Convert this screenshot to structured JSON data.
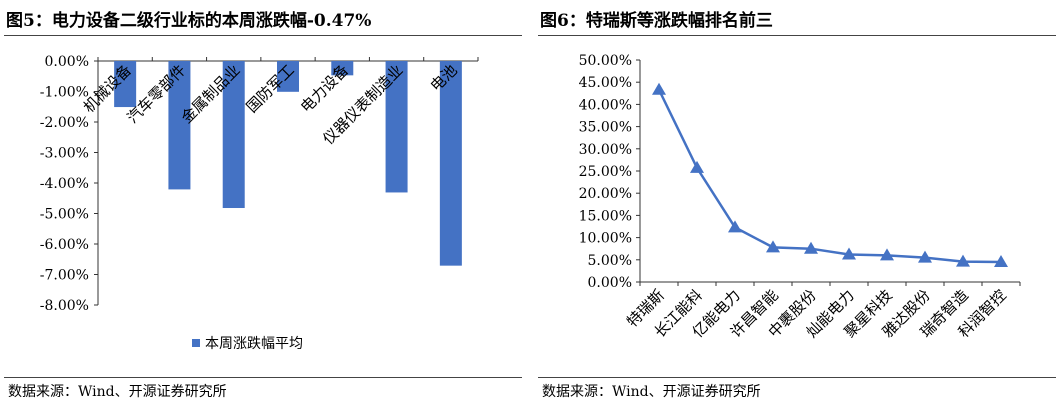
{
  "left": {
    "title": "图5：电力设备二级行业标的本周涨跌幅-0.47%",
    "source": "数据来源：Wind、开源证券研究所"
  },
  "right": {
    "title": "图6：特瑞斯等涨跌幅排名前三",
    "source": "数据来源：Wind、开源证券研究所"
  },
  "chart_data": [
    {
      "type": "bar",
      "categories": [
        "机械设备",
        "汽车零部件",
        "金属制品业",
        "国防军工",
        "电力设备",
        "仪器仪表制造业",
        "电池"
      ],
      "series": [
        {
          "name": "本周涨跌幅平均",
          "values": [
            -1.51,
            -4.21,
            -4.82,
            -1.01,
            -0.47,
            -4.31,
            -6.71
          ]
        }
      ],
      "ylim": [
        -8,
        0
      ],
      "yticks": [
        "0.00%",
        "-1.00%",
        "-2.00%",
        "-3.00%",
        "-4.00%",
        "-5.00%",
        "-6.00%",
        "-7.00%",
        "-8.00%"
      ],
      "legend": "bottom",
      "color": "#4472C4",
      "grid": false
    },
    {
      "type": "line",
      "categories": [
        "特瑞斯",
        "长江能科",
        "亿能电力",
        "许昌智能",
        "中裹股份",
        "灿能电力",
        "聚星科技",
        "雅达股份",
        "瑞奇智造",
        "科润智控"
      ],
      "values": [
        43.3,
        25.7,
        12.3,
        7.8,
        7.5,
        6.2,
        6.0,
        5.5,
        4.6,
        4.5
      ],
      "ylim": [
        0,
        50
      ],
      "yticks": [
        "0.00%",
        "5.00%",
        "10.00%",
        "15.00%",
        "20.00%",
        "25.00%",
        "30.00%",
        "35.00%",
        "40.00%",
        "45.00%",
        "50.00%"
      ],
      "color": "#4472C4",
      "grid": false,
      "marker": "triangle"
    }
  ]
}
